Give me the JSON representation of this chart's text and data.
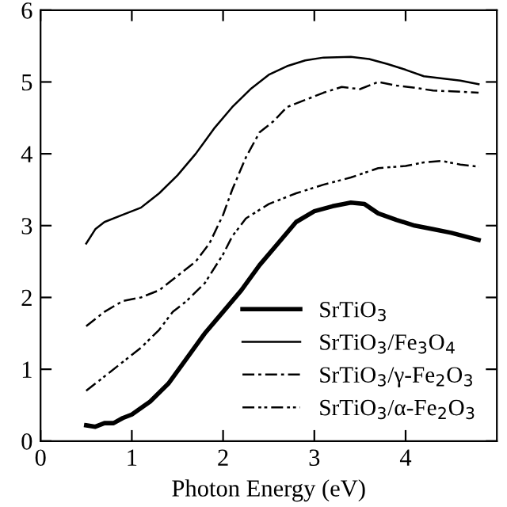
{
  "chart_data": {
    "type": "line",
    "xlabel": "Photon Energy (eV)",
    "xlim": [
      0,
      5
    ],
    "xticks": [
      0,
      1,
      2,
      3,
      4
    ],
    "ylim": [
      0,
      6
    ],
    "yticks": [
      0,
      1,
      2,
      3,
      4,
      5,
      6
    ],
    "grid": false,
    "legend": "bottom right",
    "marker": "none",
    "series": [
      {
        "name": "SrTiO$_{3}$",
        "color": "#000000",
        "line_style": "solid",
        "x": [
          0.5,
          0.6,
          0.7,
          0.8,
          0.9,
          1.0,
          1.2,
          1.4,
          1.6,
          1.8,
          2.0,
          2.2,
          2.4,
          2.6,
          2.8,
          3.0,
          3.2,
          3.4,
          3.55,
          3.7,
          3.9,
          4.1,
          4.3,
          4.5,
          4.8
        ],
        "values": [
          0.22,
          0.2,
          0.25,
          0.25,
          0.32,
          0.37,
          0.55,
          0.8,
          1.15,
          1.5,
          1.8,
          2.1,
          2.45,
          2.75,
          3.05,
          3.2,
          3.27,
          3.32,
          3.3,
          3.17,
          3.08,
          3.0,
          2.95,
          2.9,
          2.8
        ]
      },
      {
        "name": "SrTiO$_{3}$/Fe$_{3}$O$_{4}$",
        "color": "#000000",
        "line_style": "solid",
        "x": [
          0.5,
          0.6,
          0.7,
          0.9,
          1.1,
          1.3,
          1.5,
          1.7,
          1.9,
          2.1,
          2.3,
          2.5,
          2.7,
          2.9,
          3.1,
          3.4,
          3.6,
          3.8,
          4.0,
          4.2,
          4.4,
          4.6,
          4.8
        ],
        "values": [
          2.75,
          2.95,
          3.05,
          3.15,
          3.25,
          3.45,
          3.7,
          4.0,
          4.35,
          4.65,
          4.9,
          5.1,
          5.22,
          5.3,
          5.34,
          5.35,
          5.32,
          5.25,
          5.17,
          5.08,
          5.05,
          5.02,
          4.97
        ]
      },
      {
        "name": "SrTiO$_{3}$/γ-Fe$_{2}$O$_{3}$",
        "color": "#000000",
        "line_style": "dashed",
        "x": [
          0.5,
          0.7,
          0.9,
          1.1,
          1.3,
          1.5,
          1.7,
          1.85,
          2.0,
          2.1,
          2.25,
          2.4,
          2.55,
          2.7,
          2.9,
          3.1,
          3.3,
          3.5,
          3.7,
          3.9,
          4.1,
          4.3,
          4.5,
          4.8
        ],
        "values": [
          1.6,
          1.8,
          1.95,
          2.0,
          2.1,
          2.3,
          2.5,
          2.75,
          3.15,
          3.5,
          3.95,
          4.3,
          4.45,
          4.65,
          4.75,
          4.85,
          4.93,
          4.9,
          5.0,
          4.95,
          4.92,
          4.88,
          4.87,
          4.85
        ]
      },
      {
        "name": "SrTiO$_{3}$/α-Fe$_{2}$O$_{3}$",
        "color": "#000000",
        "line_style": "dotted",
        "x": [
          0.5,
          0.7,
          0.9,
          1.1,
          1.3,
          1.45,
          1.6,
          1.8,
          2.0,
          2.1,
          2.25,
          2.5,
          2.8,
          3.1,
          3.4,
          3.7,
          4.0,
          4.2,
          4.4,
          4.6,
          4.8
        ],
        "values": [
          0.7,
          0.9,
          1.1,
          1.3,
          1.55,
          1.8,
          1.95,
          2.2,
          2.6,
          2.85,
          3.1,
          3.3,
          3.45,
          3.57,
          3.67,
          3.8,
          3.83,
          3.88,
          3.9,
          3.85,
          3.82
        ]
      }
    ]
  }
}
